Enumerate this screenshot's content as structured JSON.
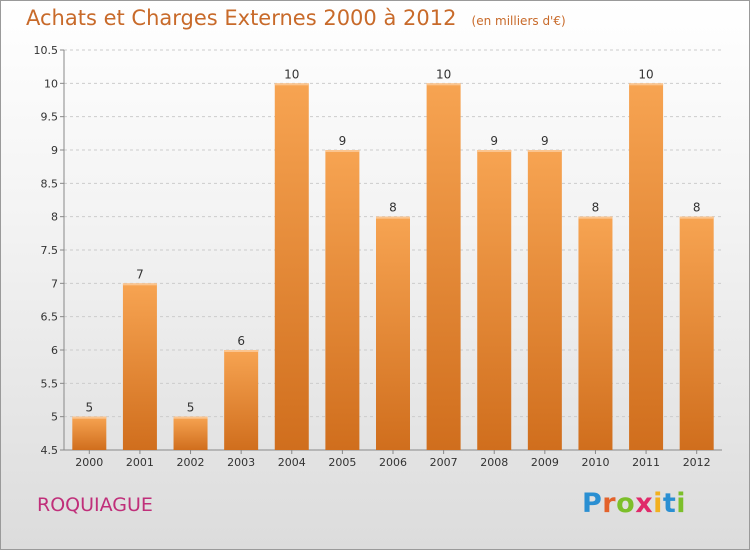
{
  "title": {
    "main": "Achats et Charges Externes 2000 à 2012",
    "unit": "(en milliers d'€)"
  },
  "commune": "ROQUIAGUE",
  "brand": {
    "letters": [
      "P",
      "r",
      "o",
      "x",
      "i",
      "t",
      "i"
    ],
    "colors": [
      "#2a8fd2",
      "#e3622b",
      "#7cbf2a",
      "#e02a6a",
      "#f2b01e",
      "#2a8fd2",
      "#7cbf2a"
    ]
  },
  "colors": {
    "bar_top": "#f7a452",
    "bar_bottom": "#d06e1d",
    "grid": "#cccccc",
    "text": "#333333"
  },
  "chart_data": {
    "type": "bar",
    "categories": [
      "2000",
      "2001",
      "2002",
      "2003",
      "2004",
      "2005",
      "2006",
      "2007",
      "2008",
      "2009",
      "2010",
      "2011",
      "2012"
    ],
    "values": [
      5,
      7,
      5,
      6,
      10,
      9,
      8,
      10,
      9,
      9,
      8,
      10,
      8
    ],
    "data_labels": [
      "5",
      "7",
      "5",
      "6",
      "10",
      "9",
      "8",
      "10",
      "9",
      "9",
      "8",
      "10",
      "8"
    ],
    "yticks": [
      "4.5",
      "5",
      "5.5",
      "6",
      "6.5",
      "7",
      "7.5",
      "8",
      "8.5",
      "9",
      "9.5",
      "10",
      "10.5"
    ],
    "ylim": [
      4.5,
      10.5
    ],
    "grid": "horizontal dashed",
    "legend": "none"
  }
}
